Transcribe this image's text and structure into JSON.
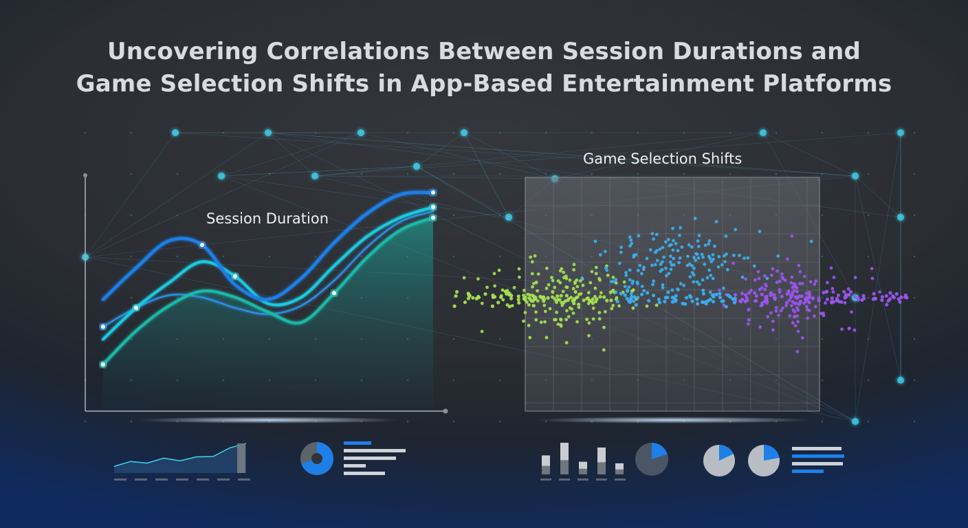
{
  "title": {
    "line1": "Uncovering Correlations Between Session Durations and",
    "line2": "Game Selection Shifts in App-Based Entertainment Platforms"
  },
  "colors": {
    "accent_blue": "#1e7fe8",
    "accent_cyan": "#1ec8e0",
    "accent_teal": "#1ab8a8",
    "scatter_green": "#a6e052",
    "scatter_blue": "#3ab0f0",
    "scatter_purple": "#9b55f0",
    "node_glow": "#3fd6f0"
  },
  "chart_data": [
    {
      "type": "line",
      "title": "Session Duration",
      "xlabel": "",
      "ylabel": "",
      "x": [
        0,
        1,
        2,
        3,
        4,
        5,
        6,
        7,
        8,
        9,
        10
      ],
      "ylim": [
        0,
        10
      ],
      "series": [
        {
          "values": [
            4.9,
            6.4,
            7.7,
            7.5,
            5.6,
            4.9,
            5.9,
            7.6,
            9.0,
            9.9,
            10.0
          ]
        },
        {
          "values": [
            3.0,
            4.5,
            5.7,
            6.7,
            6.0,
            4.7,
            5.0,
            6.5,
            7.9,
            8.8,
            9.3
          ]
        },
        {
          "values": [
            1.8,
            3.4,
            4.6,
            5.3,
            5.0,
            4.3,
            3.8,
            5.2,
            6.9,
            8.2,
            8.8
          ]
        },
        {
          "values": [
            3.6,
            4.5,
            5.1,
            5.0,
            4.5,
            4.2,
            4.6,
            5.8,
            7.4,
            8.6,
            9.1
          ]
        }
      ]
    },
    {
      "type": "scatter",
      "title": "Game Selection Shifts",
      "xlabel": "",
      "ylabel": "",
      "xlim": [
        0,
        10
      ],
      "ylim": [
        -5,
        5
      ],
      "clusters": [
        {
          "color": "green",
          "center_x": 2.3,
          "center_y": 0.1,
          "spread_x": 1.6,
          "spread_y": 1.6,
          "count": 150
        },
        {
          "color": "blue",
          "center_x": 5.0,
          "center_y": 1.6,
          "spread_x": 1.5,
          "spread_y": 1.5,
          "count": 150
        },
        {
          "color": "purple",
          "center_x": 7.6,
          "center_y": 0.0,
          "spread_x": 1.4,
          "spread_y": 1.7,
          "count": 140
        }
      ],
      "tail_values": [
        -0.1,
        0.0,
        0.1
      ]
    }
  ],
  "mini_widgets": {
    "line_widget_values": [
      2.0,
      3.5,
      3.0,
      4.5,
      3.7,
      4.9,
      5.0,
      7.6,
      9.0
    ],
    "donut_fill": 0.7,
    "bars_left": [
      0.6,
      1.0,
      0.4,
      0.85,
      0.35
    ],
    "donut_right_fill": 0.2,
    "pie_a_fill": 0.18,
    "pie_b_fill": 0.22
  }
}
